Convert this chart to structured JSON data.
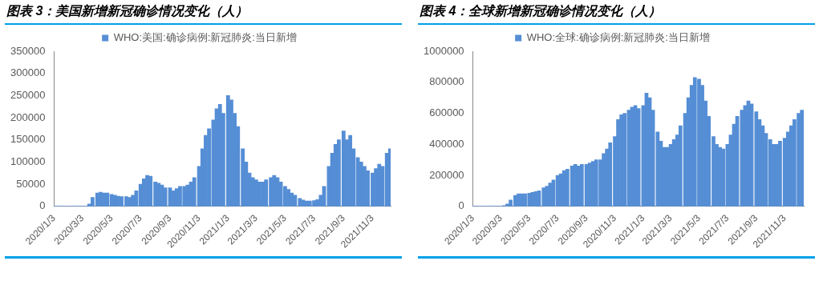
{
  "chart_data": [
    {
      "type": "bar",
      "title": "图表 3：美国新增新冠确诊情况变化（人）",
      "legend": "top",
      "x": [
        "2020-01-03",
        "2020-01-10",
        "2020-01-17",
        "2020-01-24",
        "2020-02-03",
        "2020-02-10",
        "2020-02-17",
        "2020-02-24",
        "2020-03-03",
        "2020-03-10",
        "2020-03-17",
        "2020-03-24",
        "2020-04-03",
        "2020-04-10",
        "2020-04-17",
        "2020-04-24",
        "2020-05-03",
        "2020-05-10",
        "2020-05-17",
        "2020-05-24",
        "2020-06-03",
        "2020-06-10",
        "2020-06-17",
        "2020-06-24",
        "2020-07-03",
        "2020-07-10",
        "2020-07-17",
        "2020-07-24",
        "2020-08-03",
        "2020-08-10",
        "2020-08-17",
        "2020-08-24",
        "2020-09-03",
        "2020-09-10",
        "2020-09-17",
        "2020-09-24",
        "2020-10-03",
        "2020-10-10",
        "2020-10-17",
        "2020-10-24",
        "2020-11-03",
        "2020-11-10",
        "2020-11-17",
        "2020-11-24",
        "2020-12-03",
        "2020-12-10",
        "2020-12-17",
        "2020-12-24",
        "2021-01-03",
        "2021-01-10",
        "2021-01-17",
        "2021-01-24",
        "2021-02-03",
        "2021-02-10",
        "2021-02-17",
        "2021-02-24",
        "2021-03-03",
        "2021-03-10",
        "2021-03-17",
        "2021-03-24",
        "2021-04-03",
        "2021-04-10",
        "2021-04-17",
        "2021-04-24",
        "2021-05-03",
        "2021-05-10",
        "2021-05-17",
        "2021-05-24",
        "2021-06-03",
        "2021-06-10",
        "2021-06-17",
        "2021-06-24",
        "2021-07-03",
        "2021-07-10",
        "2021-07-17",
        "2021-07-24",
        "2021-08-03",
        "2021-08-10",
        "2021-08-17",
        "2021-08-24",
        "2021-09-03",
        "2021-09-10",
        "2021-09-17",
        "2021-09-24",
        "2021-10-03",
        "2021-10-10",
        "2021-10-17",
        "2021-10-24",
        "2021-11-03",
        "2021-11-10",
        "2021-11-17",
        "2021-11-24",
        "2021-12-03",
        "2021-12-10"
      ],
      "series": [
        {
          "name": "WHO:美国:确诊病例:新冠肺炎:当日新增",
          "color": "#558ed5",
          "values": [
            0,
            0,
            0,
            0,
            0,
            0,
            0,
            0,
            0,
            0,
            5000,
            20000,
            30000,
            32000,
            30000,
            30000,
            27000,
            25000,
            23000,
            22000,
            22000,
            20000,
            25000,
            35000,
            50000,
            62000,
            70000,
            68000,
            55000,
            52000,
            48000,
            42000,
            42000,
            35000,
            40000,
            45000,
            45000,
            48000,
            55000,
            65000,
            90000,
            130000,
            160000,
            175000,
            195000,
            220000,
            230000,
            210000,
            250000,
            240000,
            210000,
            180000,
            130000,
            100000,
            75000,
            65000,
            60000,
            55000,
            55000,
            60000,
            65000,
            70000,
            65000,
            55000,
            45000,
            38000,
            30000,
            25000,
            18000,
            14000,
            12000,
            12000,
            13000,
            15000,
            25000,
            45000,
            90000,
            120000,
            140000,
            150000,
            170000,
            150000,
            160000,
            130000,
            110000,
            100000,
            90000,
            80000,
            75000,
            85000,
            95000,
            90000,
            120000,
            130000
          ]
        }
      ],
      "xlim": [
        "2020-01-03",
        "2021-12-11"
      ],
      "xticks": [
        {
          "value": "2020-01-03",
          "label": "2020/1/3"
        },
        {
          "value": "2020-03-03",
          "label": "2020/3/3"
        },
        {
          "value": "2020-05-03",
          "label": "2020/5/3"
        },
        {
          "value": "2020-07-03",
          "label": "2020/7/3"
        },
        {
          "value": "2020-09-03",
          "label": "2020/9/3"
        },
        {
          "value": "2020-11-03",
          "label": "2020/11/3"
        },
        {
          "value": "2021-01-03",
          "label": "2021/1/3"
        },
        {
          "value": "2021-03-03",
          "label": "2021/3/3"
        },
        {
          "value": "2021-05-03",
          "label": "2021/5/3"
        },
        {
          "value": "2021-07-03",
          "label": "2021/7/3"
        },
        {
          "value": "2021-09-03",
          "label": "2021/9/3"
        },
        {
          "value": "2021-11-03",
          "label": "2021/11/3"
        }
      ],
      "ylim": [
        0,
        350000
      ],
      "yticks": [
        0,
        50000,
        100000,
        150000,
        200000,
        250000,
        300000,
        350000
      ]
    },
    {
      "type": "bar",
      "title": "图表 4：全球新增新冠确诊情况变化（人）",
      "legend": "top",
      "x": [
        "2020-01-03",
        "2020-01-10",
        "2020-01-17",
        "2020-01-24",
        "2020-02-03",
        "2020-02-10",
        "2020-02-17",
        "2020-02-24",
        "2020-03-03",
        "2020-03-10",
        "2020-03-17",
        "2020-03-24",
        "2020-04-03",
        "2020-04-10",
        "2020-04-17",
        "2020-04-24",
        "2020-05-03",
        "2020-05-10",
        "2020-05-17",
        "2020-05-24",
        "2020-06-03",
        "2020-06-10",
        "2020-06-17",
        "2020-06-24",
        "2020-07-03",
        "2020-07-10",
        "2020-07-17",
        "2020-07-24",
        "2020-08-03",
        "2020-08-10",
        "2020-08-17",
        "2020-08-24",
        "2020-09-03",
        "2020-09-10",
        "2020-09-17",
        "2020-09-24",
        "2020-10-03",
        "2020-10-10",
        "2020-10-17",
        "2020-10-24",
        "2020-11-03",
        "2020-11-10",
        "2020-11-17",
        "2020-11-24",
        "2020-12-03",
        "2020-12-10",
        "2020-12-17",
        "2020-12-24",
        "2021-01-03",
        "2021-01-10",
        "2021-01-17",
        "2021-01-24",
        "2021-02-03",
        "2021-02-10",
        "2021-02-17",
        "2021-02-24",
        "2021-03-03",
        "2021-03-10",
        "2021-03-17",
        "2021-03-24",
        "2021-04-03",
        "2021-04-10",
        "2021-04-17",
        "2021-04-24",
        "2021-05-03",
        "2021-05-10",
        "2021-05-17",
        "2021-05-24",
        "2021-06-03",
        "2021-06-10",
        "2021-06-17",
        "2021-06-24",
        "2021-07-03",
        "2021-07-10",
        "2021-07-17",
        "2021-07-24",
        "2021-08-03",
        "2021-08-10",
        "2021-08-17",
        "2021-08-24",
        "2021-09-03",
        "2021-09-10",
        "2021-09-17",
        "2021-09-24",
        "2021-10-03",
        "2021-10-10",
        "2021-10-17",
        "2021-10-24",
        "2021-11-03",
        "2021-11-10",
        "2021-11-17",
        "2021-11-24",
        "2021-12-03",
        "2021-12-10"
      ],
      "series": [
        {
          "name": "WHO:全球:确诊病例:新冠肺炎:当日新增",
          "color": "#558ed5",
          "values": [
            0,
            0,
            0,
            0,
            0,
            0,
            0,
            0,
            0,
            5000,
            15000,
            40000,
            70000,
            80000,
            80000,
            80000,
            85000,
            90000,
            95000,
            100000,
            120000,
            130000,
            150000,
            170000,
            200000,
            210000,
            230000,
            240000,
            260000,
            270000,
            260000,
            270000,
            270000,
            280000,
            290000,
            300000,
            300000,
            340000,
            370000,
            410000,
            450000,
            560000,
            590000,
            600000,
            620000,
            640000,
            650000,
            630000,
            650000,
            730000,
            700000,
            620000,
            480000,
            420000,
            380000,
            380000,
            400000,
            430000,
            460000,
            520000,
            600000,
            700000,
            780000,
            830000,
            820000,
            780000,
            680000,
            580000,
            450000,
            400000,
            380000,
            370000,
            400000,
            460000,
            530000,
            580000,
            620000,
            650000,
            680000,
            660000,
            610000,
            560000,
            520000,
            470000,
            430000,
            400000,
            400000,
            420000,
            440000,
            480000,
            520000,
            560000,
            600000,
            620000
          ]
        }
      ],
      "xlim": [
        "2020-01-03",
        "2021-12-14"
      ],
      "xticks": [
        {
          "value": "2020-01-03",
          "label": "2020/1/3"
        },
        {
          "value": "2020-03-03",
          "label": "2020/3/3"
        },
        {
          "value": "2020-05-03",
          "label": "2020/5/3"
        },
        {
          "value": "2020-07-03",
          "label": "2020/7/3"
        },
        {
          "value": "2020-09-03",
          "label": "2020/9/3"
        },
        {
          "value": "2020-11-03",
          "label": "2020/11/3"
        },
        {
          "value": "2021-01-03",
          "label": "2021/1/3"
        },
        {
          "value": "2021-03-03",
          "label": "2021/3/3"
        },
        {
          "value": "2021-05-03",
          "label": "2021/5/3"
        },
        {
          "value": "2021-07-03",
          "label": "2021/7/3"
        },
        {
          "value": "2021-09-03",
          "label": "2021/9/3"
        },
        {
          "value": "2021-11-03",
          "label": "2021/11/3"
        }
      ],
      "ylim": [
        0,
        1000000
      ],
      "yticks": [
        0,
        200000,
        400000,
        600000,
        800000,
        1000000
      ]
    }
  ]
}
